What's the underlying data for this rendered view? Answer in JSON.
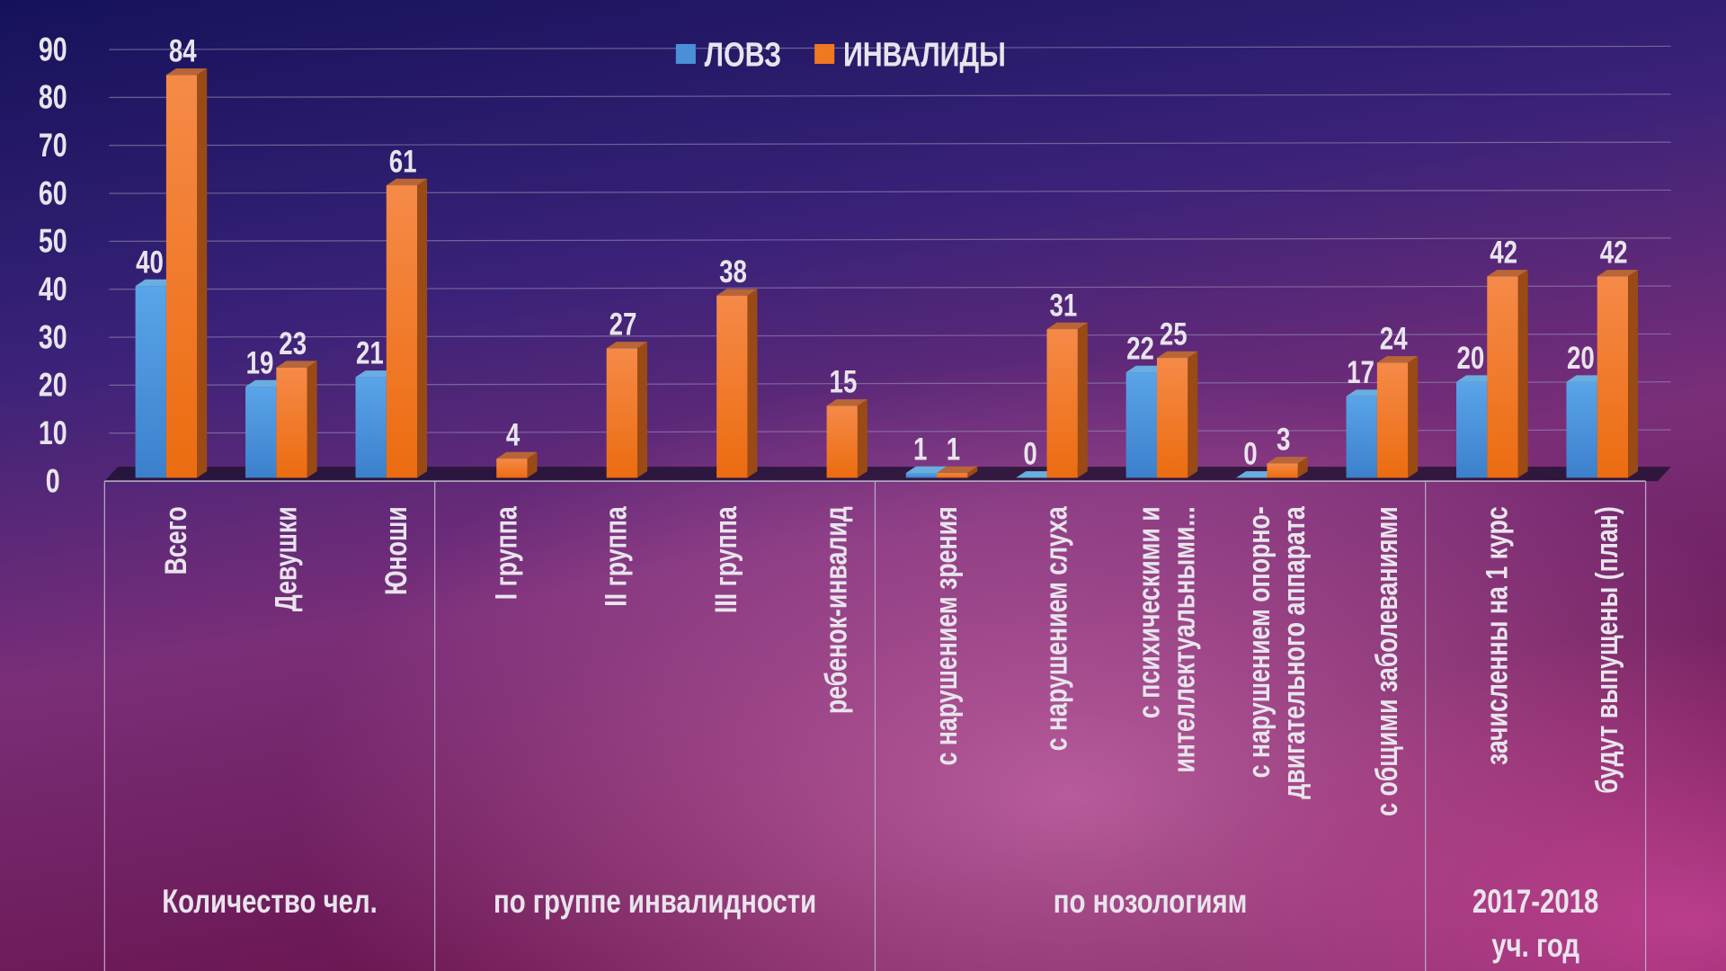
{
  "chart_data": {
    "type": "bar",
    "title": "",
    "xlabel": "",
    "ylabel": "",
    "ylim": [
      0,
      90
    ],
    "yticks": [
      0,
      10,
      20,
      30,
      40,
      50,
      60,
      70,
      80,
      90
    ],
    "grid": true,
    "legend_position": "top-center",
    "categories": [
      [
        "Всего"
      ],
      [
        "Девушки"
      ],
      [
        "Юноши"
      ],
      [
        "I  группа"
      ],
      [
        "II  группа"
      ],
      [
        "III группа"
      ],
      [
        "ребенок-инвалид"
      ],
      [
        "с нарушением зрения"
      ],
      [
        "с нарушением слуха"
      ],
      [
        "с психическими и",
        "интеллектуальными..."
      ],
      [
        "с нарушением опорно-",
        "двигательного аппарата"
      ],
      [
        "с общими заболеваниями"
      ],
      [
        "зачисленны на 1 курс"
      ],
      [
        "будут выпущены (план)"
      ]
    ],
    "groups": [
      {
        "label": [
          "Количество чел."
        ],
        "span": 3
      },
      {
        "label": [
          "по группе инвалидности"
        ],
        "span": 4
      },
      {
        "label": [
          "по нозологиям"
        ],
        "span": 5
      },
      {
        "label": [
          "2017-2018",
          "уч. год"
        ],
        "span": 2
      }
    ],
    "series": [
      {
        "name": "ЛОВЗ",
        "color": "#4a90d9",
        "values": [
          40,
          19,
          21,
          null,
          null,
          null,
          null,
          1,
          0,
          22,
          0,
          17,
          20,
          20
        ]
      },
      {
        "name": "ИНВАЛИДЫ",
        "color": "#f07820",
        "values": [
          84,
          23,
          61,
          4,
          27,
          38,
          15,
          1,
          31,
          25,
          3,
          24,
          42,
          42
        ]
      }
    ]
  }
}
